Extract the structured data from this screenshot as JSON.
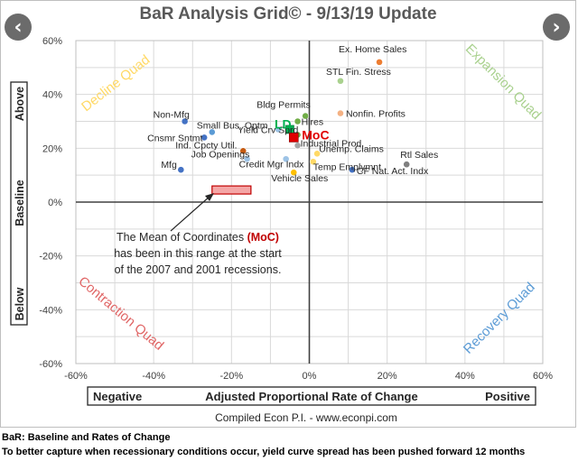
{
  "nav": {
    "prev_label": "‹",
    "next_label": "›"
  },
  "chart_data": {
    "type": "scatter",
    "title": "BaR Analysis Grid© - 9/13/19 Update",
    "xlim": [
      -60,
      60
    ],
    "ylim": [
      -60,
      60
    ],
    "x_ticks": [
      "-60%",
      "-40%",
      "-20%",
      "0%",
      "20%",
      "40%",
      "60%"
    ],
    "y_ticks": [
      "60%",
      "40%",
      "20%",
      "0%",
      "-20%",
      "-40%",
      "-60%"
    ],
    "grid": true,
    "x_axis_box": {
      "left": "Negative",
      "center": "Adjusted Proportional Rate of Change",
      "right": "Positive"
    },
    "y_axis_box": {
      "top": "Above",
      "middle": "Baseline",
      "bottom": "Below"
    },
    "quadrants": [
      {
        "label": "Decline Quad",
        "color": "#ffd966"
      },
      {
        "label": "Expansion Quad",
        "color": "#a9d18e"
      },
      {
        "label": "Contraction Quad",
        "color": "#e06666"
      },
      {
        "label": "Recovery Quad",
        "color": "#5b9bd5"
      }
    ],
    "points": [
      {
        "label": "Ex. Home Sales",
        "x": 18,
        "y": 52,
        "color": "#ed7d31"
      },
      {
        "label": "STL Fin. Stress",
        "x": 8,
        "y": 45,
        "color": "#a9d18e"
      },
      {
        "label": "Nonfin. Profits",
        "x": 8,
        "y": 33,
        "color": "#f4b183"
      },
      {
        "label": "Bldg Permits",
        "x": -1,
        "y": 32,
        "color": "#70ad47"
      },
      {
        "label": "Hires",
        "x": -3,
        "y": 30,
        "color": "#70ad47"
      },
      {
        "label": "Non-Mfg",
        "x": -32,
        "y": 30,
        "color": "#4472c4"
      },
      {
        "label": "Small Bus. Optm",
        "x": -25,
        "y": 26,
        "color": "#5b9bd5"
      },
      {
        "label": "Yield Crv Sprd",
        "x": -8,
        "y": 27,
        "color": "#9dc3e6"
      },
      {
        "label": "Cnsmr Sntmt",
        "x": -27,
        "y": 24,
        "color": "#4472c4"
      },
      {
        "label": "Ind. Cpcty Util.",
        "x": -17,
        "y": 19,
        "color": "#c55a11"
      },
      {
        "label": "Industrial Prod.",
        "x": -3,
        "y": 21,
        "color": "#a5a5a5"
      },
      {
        "label": "Job Openings",
        "x": -16,
        "y": 16,
        "color": "#9dc3e6"
      },
      {
        "label": "Unemp. Claims",
        "x": 2,
        "y": 18,
        "color": "#ffd966"
      },
      {
        "label": "Credit Mgr Indx",
        "x": -6,
        "y": 16,
        "color": "#9dc3e6"
      },
      {
        "label": "Temp Emplymnt",
        "x": 1,
        "y": 15,
        "color": "#ffd966"
      },
      {
        "label": "Rtl Sales",
        "x": 25,
        "y": 14,
        "color": "#7f7f7f"
      },
      {
        "label": "Mfg",
        "x": -33,
        "y": 12,
        "color": "#4472c4"
      },
      {
        "label": "CF Nat. Act. Indx",
        "x": 11,
        "y": 12,
        "color": "#4472c4"
      },
      {
        "label": "Vehicle Sales",
        "x": -4,
        "y": 11,
        "color": "#ffc000"
      },
      {
        "label": "",
        "x": -3,
        "y": 25,
        "color": "#70ad47"
      }
    ],
    "ld": {
      "label": "LD",
      "x": -5,
      "y": 27,
      "color": "#00b050"
    },
    "moc": {
      "label": "MoC",
      "x": -4,
      "y": 24,
      "color": "#e00000"
    },
    "recession_range": {
      "x": [
        -25,
        -15
      ],
      "y": [
        3,
        6
      ]
    },
    "annotation": {
      "line1_prefix": "The Mean of Coordinates",
      "line1_highlight": "(MoC)",
      "line2": "has been in this range at the start",
      "line3": "of the 2007 and 2001 recessions."
    },
    "credit": "Compiled Econ P.I. - www.econpi.com"
  },
  "footer": {
    "line1": "BaR: Baseline and Rates of Change",
    "line2": "To better capture when recessionary conditions occur, yield curve spread has been pushed forward 12 months"
  }
}
